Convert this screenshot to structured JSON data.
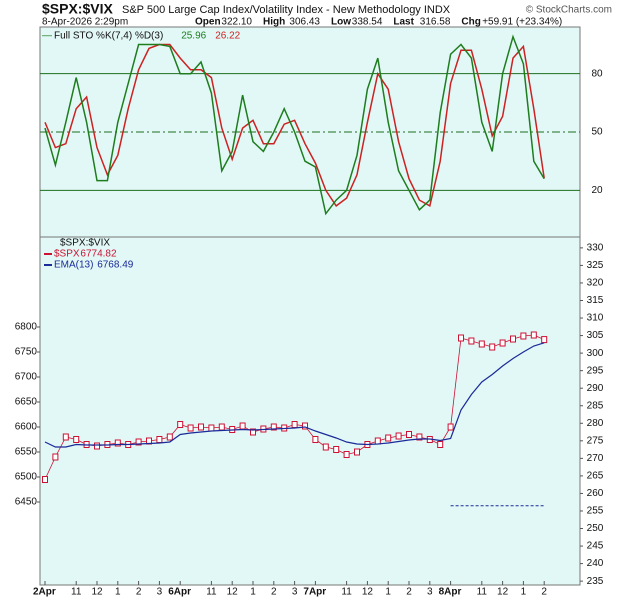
{
  "header": {
    "symbol": "$SPX:$VIX",
    "description": "S&P 500 Large Cap Index/Volatility Index - New Methodology  INDX",
    "copyright": "© StockCharts.com",
    "date": "8-Apr-2026 2:29pm",
    "quote": [
      {
        "label": "Open",
        "value": "322.10"
      },
      {
        "label": "High",
        "value": "306.43"
      },
      {
        "label": "Low",
        "value": "338.54"
      },
      {
        "label": "Last",
        "value": "316.58"
      },
      {
        "label": "Chg",
        "value": "+59.91 (+23.34%)"
      }
    ]
  },
  "chart_data": [
    {
      "type": "line",
      "legend_title": "Full STO %K(7,4) %D(3)",
      "ylim": [
        -4,
        104
      ],
      "yticks": [
        20,
        50,
        80
      ],
      "tick_styles": [
        "solid",
        "dashdot",
        "solid"
      ],
      "grid": true,
      "series": [
        {
          "color": "#1e7d1e",
          "values": [
            52,
            33,
            55,
            78,
            55,
            25,
            25,
            55,
            75,
            95,
            95,
            95,
            94,
            80,
            80,
            86,
            70,
            30,
            40,
            69,
            45,
            40,
            50,
            62,
            50,
            35,
            32,
            8,
            15,
            20,
            38,
            72,
            88,
            55,
            30,
            20,
            10,
            15,
            60,
            90,
            95,
            88,
            55,
            40,
            80,
            99,
            85,
            35,
            25.96
          ]
        },
        {
          "color": "#cc2222",
          "values": [
            55,
            42,
            44,
            62,
            68,
            42,
            28,
            38,
            62,
            82,
            93,
            95,
            95,
            88,
            82,
            82,
            78,
            52,
            36,
            52,
            56,
            44,
            44,
            54,
            56,
            44,
            34,
            20,
            12,
            16,
            28,
            55,
            80,
            72,
            45,
            26,
            15,
            12,
            35,
            75,
            92,
            92,
            72,
            48,
            58,
            88,
            94,
            62,
            26.22
          ]
        }
      ]
    },
    {
      "type": "line",
      "legend_title": "$SPX:$VIX",
      "categories": [
        "2Apr",
        null,
        null,
        "11",
        null,
        "12",
        null,
        "1",
        null,
        "2",
        null,
        "3",
        null,
        "6Apr",
        null,
        null,
        "11",
        null,
        "12",
        null,
        "1",
        null,
        "2",
        null,
        "3",
        null,
        "7Apr",
        null,
        null,
        "11",
        null,
        "12",
        null,
        "1",
        null,
        "2",
        null,
        "3",
        null,
        "8Apr",
        null,
        null,
        "11",
        null,
        "12",
        null,
        "1",
        null,
        "2"
      ],
      "ylim": [
        6284,
        6980
      ],
      "yticks": [
        6450,
        6500,
        6550,
        6600,
        6650,
        6700,
        6750,
        6800
      ],
      "y2lim": [
        233.9,
        333.1
      ],
      "y2ticks": [
        235,
        240,
        245,
        250,
        255,
        260,
        265,
        270,
        275,
        280,
        285,
        290,
        295,
        300,
        305,
        310,
        315,
        320,
        325,
        330
      ],
      "series": [
        {
          "name": "$SPX",
          "color": "#cc1133",
          "values": [
            6495,
            6540,
            6580,
            6575,
            6565,
            6562,
            6565,
            6568,
            6565,
            6570,
            6572,
            6575,
            6580,
            6605,
            6598,
            6600,
            6598,
            6600,
            6595,
            6602,
            6590,
            6596,
            6600,
            6598,
            6605,
            6602,
            6575,
            6560,
            6555,
            6545,
            6550,
            6565,
            6572,
            6578,
            6582,
            6585,
            6580,
            6575,
            6565,
            6600,
            6778,
            6772,
            6766,
            6760,
            6768,
            6776,
            6782,
            6784,
            6774.82
          ]
        },
        {
          "name": "EMA(13)",
          "color": "#1a2a99",
          "values": [
            6570,
            6560,
            6560,
            6565,
            6564,
            6564,
            6564,
            6565,
            6565,
            6566,
            6567,
            6568,
            6570,
            6585,
            6588,
            6590,
            6592,
            6593,
            6594,
            6595,
            6594,
            6595,
            6596,
            6597,
            6598,
            6600,
            6592,
            6585,
            6578,
            6570,
            6566,
            6565,
            6566,
            6568,
            6571,
            6574,
            6576,
            6576,
            6573,
            6577,
            6634,
            6665,
            6690,
            6705,
            6722,
            6737,
            6750,
            6762,
            6768.49
          ]
        },
        {
          "color": "#1a2a99",
          "axis": "y2",
          "dashed": true,
          "values": [
            null,
            null,
            null,
            null,
            null,
            null,
            null,
            null,
            null,
            null,
            null,
            null,
            null,
            null,
            null,
            null,
            null,
            null,
            null,
            null,
            null,
            null,
            null,
            null,
            null,
            null,
            null,
            null,
            null,
            null,
            null,
            null,
            null,
            null,
            null,
            null,
            null,
            null,
            null,
            256.5,
            256.5,
            256.5,
            256.5,
            256.5,
            256.5,
            256.5,
            256.5,
            256.5,
            256.5
          ]
        }
      ]
    }
  ]
}
